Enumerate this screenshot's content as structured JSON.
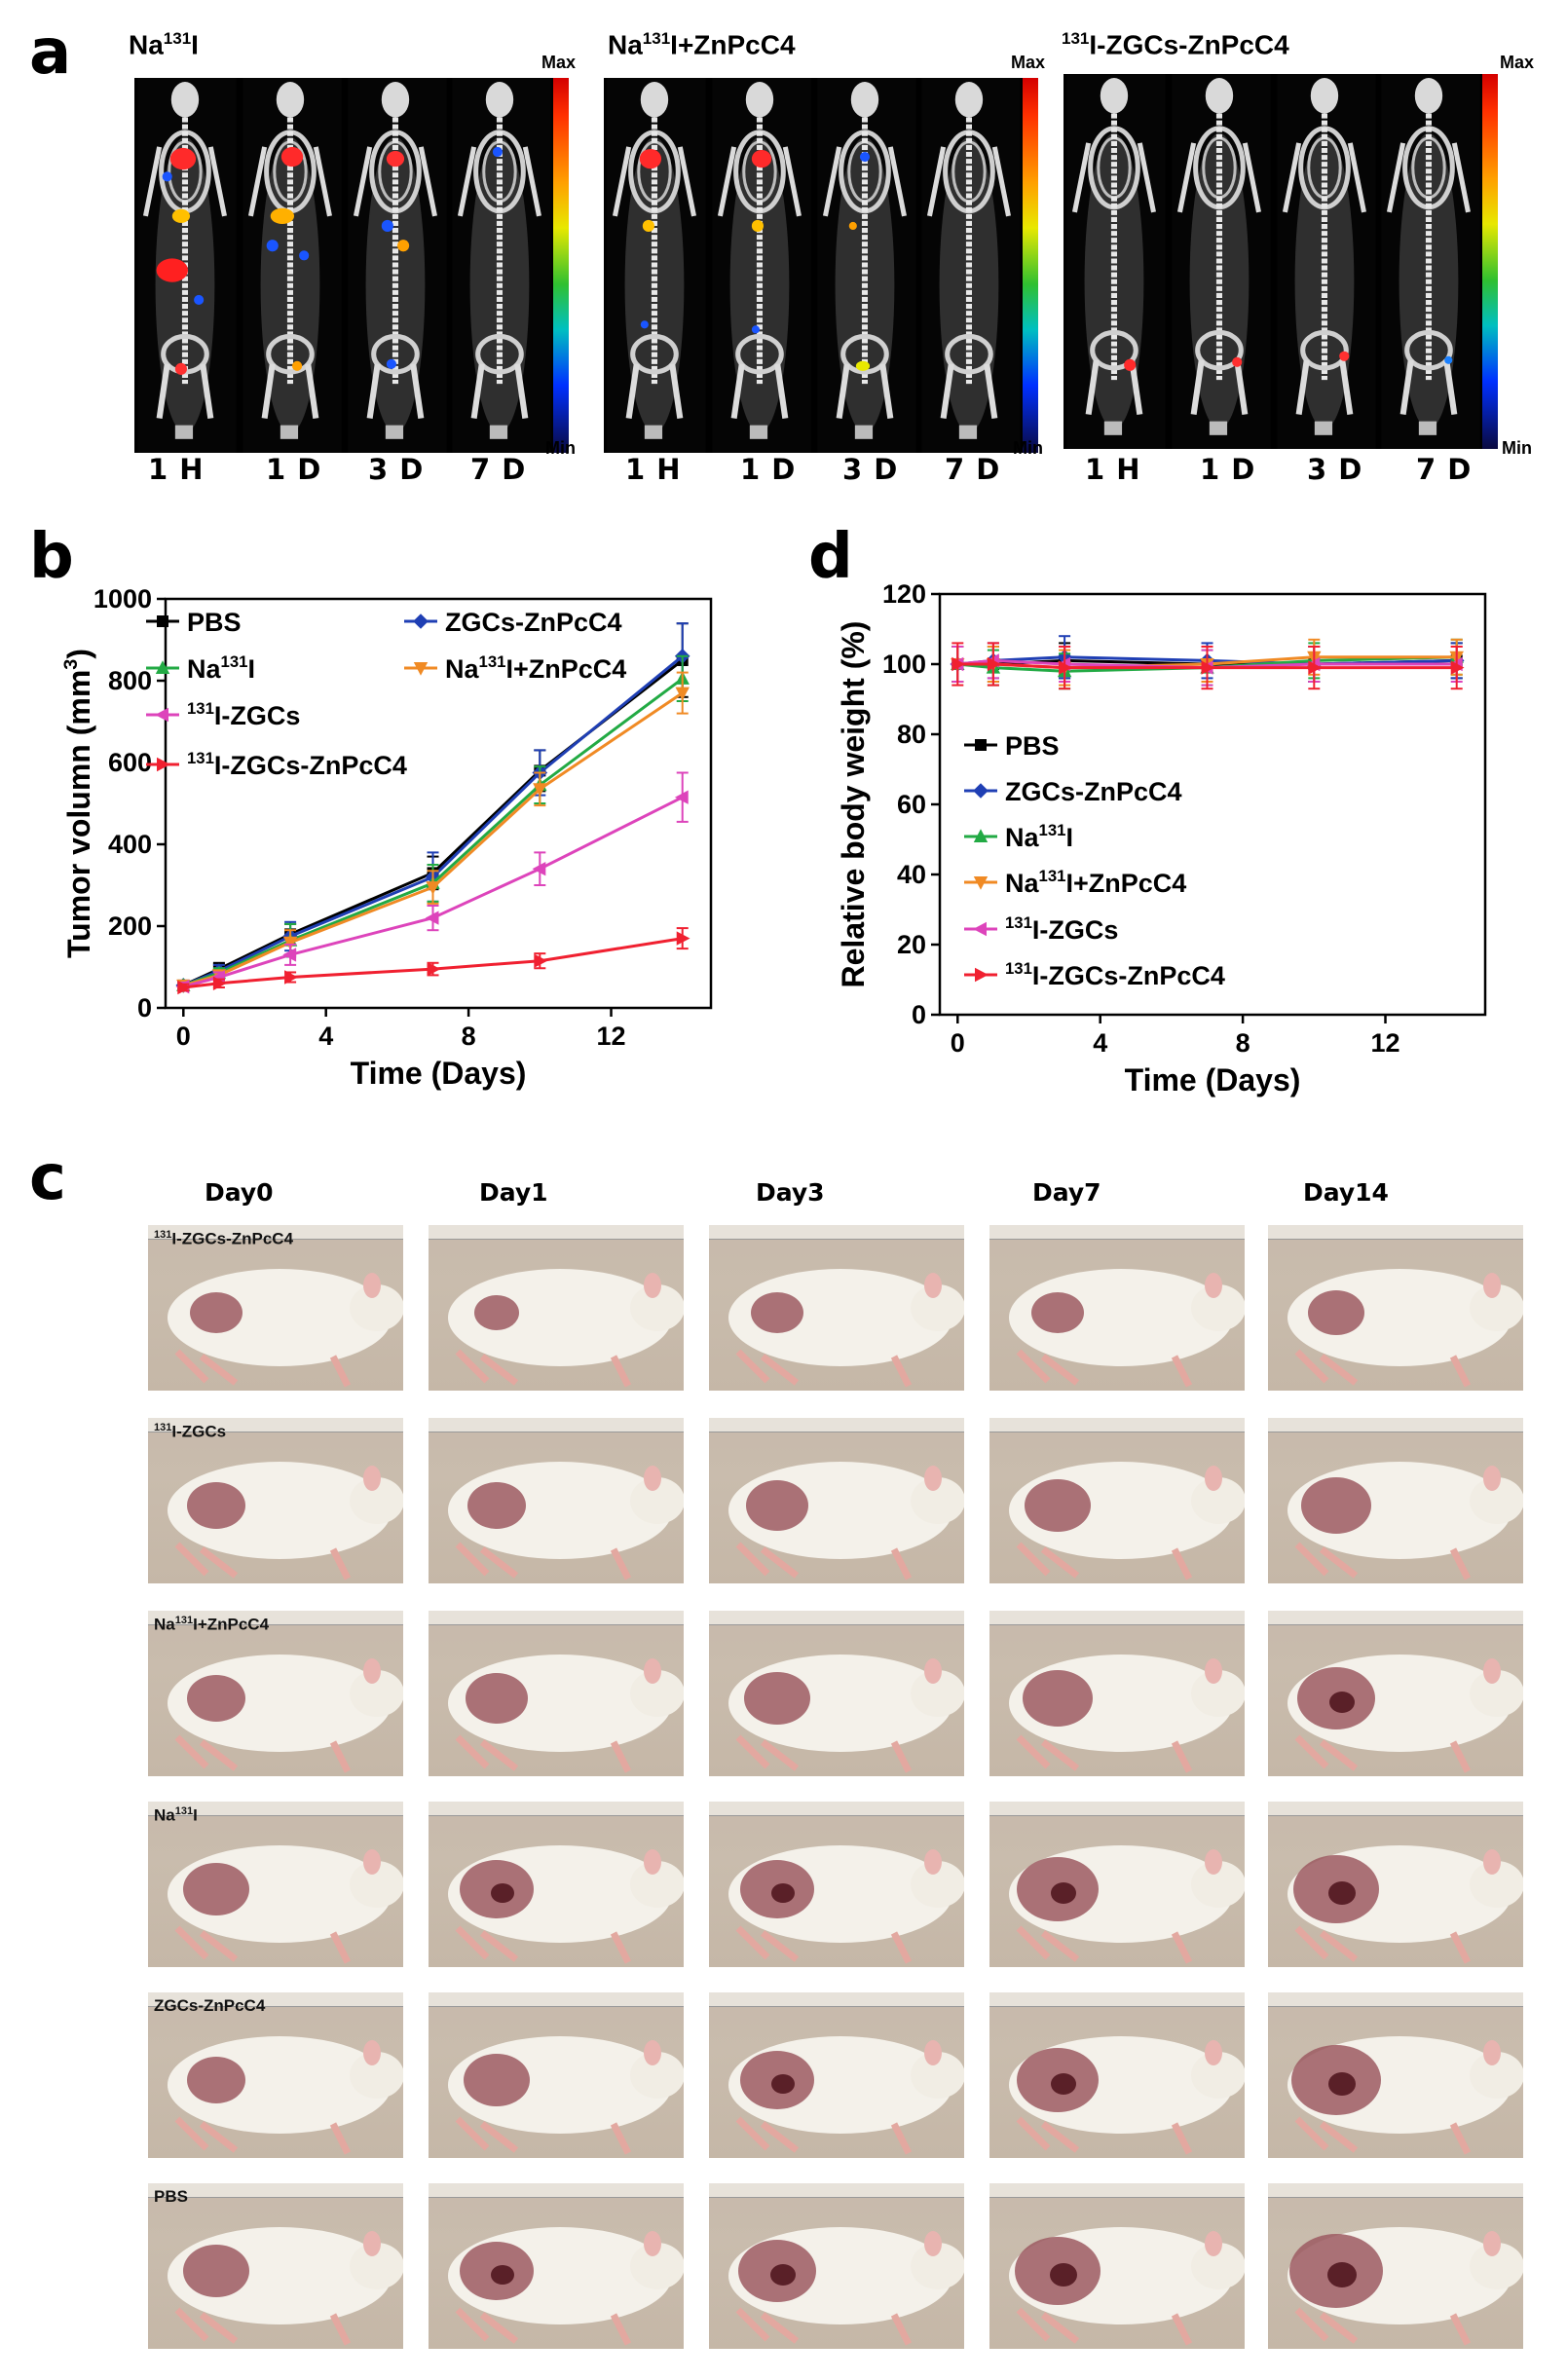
{
  "panel_a": {
    "label": "a",
    "groups": [
      {
        "title_pre": "Na",
        "title_sup": "131",
        "title_post": "I"
      },
      {
        "title_pre": "Na",
        "title_sup": "131",
        "title_post": "I+ZnPcC4"
      },
      {
        "title_pre": "",
        "title_sup": "131",
        "title_post": "I-ZGCs-ZnPcC4"
      }
    ],
    "timepoints": [
      "1 H",
      "1 D",
      "3 D",
      "7 D"
    ],
    "colorbar": {
      "max": "Max",
      "min": "Min"
    }
  },
  "panel_c": {
    "label": "c",
    "days": [
      "Day0",
      "Day1",
      "Day3",
      "Day7",
      "Day14"
    ],
    "groups": [
      {
        "pre": "",
        "sup": "131",
        "post": "I-ZGCs-ZnPcC4"
      },
      {
        "pre": "",
        "sup": "131",
        "post": "I-ZGCs"
      },
      {
        "pre": "Na",
        "sup": "131",
        "post": "I+ZnPcC4"
      },
      {
        "pre": "Na",
        "sup": "131",
        "post": "I"
      },
      {
        "pre": "ZGCs-ZnPcC4",
        "sup": "",
        "post": ""
      },
      {
        "pre": "PBS",
        "sup": "",
        "post": ""
      }
    ]
  },
  "chart_data": [
    {
      "panel": "b",
      "type": "line",
      "xlabel": "Time (Days)",
      "ylabel_pre": "Tumor volumn (mm",
      "ylabel_sup": "3",
      "ylabel_post": ")",
      "x": [
        0,
        1,
        3,
        7,
        10,
        14
      ],
      "xlim": [
        -0.5,
        14.8
      ],
      "ylim": [
        0,
        1000
      ],
      "xticks": [
        0,
        4,
        8,
        12
      ],
      "yticks": [
        0,
        200,
        400,
        600,
        800,
        1000
      ],
      "legend_placement": "top-left",
      "series": [
        {
          "pre": "PBS",
          "sup": "",
          "post": "",
          "color": "#000000",
          "marker": "square",
          "values": [
            55,
            95,
            180,
            330,
            580,
            850
          ],
          "err": [
            10,
            15,
            25,
            40,
            50,
            90
          ]
        },
        {
          "pre": "ZGCs-ZnPcC4",
          "sup": "",
          "post": "",
          "color": "#1f3fb4",
          "marker": "diamond",
          "values": [
            55,
            90,
            175,
            320,
            575,
            860
          ],
          "err": [
            10,
            15,
            35,
            60,
            55,
            80
          ]
        },
        {
          "pre": "Na",
          "sup": "131",
          "post": "I",
          "color": "#22aa44",
          "marker": "triangle-up",
          "values": [
            55,
            85,
            165,
            305,
            545,
            805
          ],
          "err": [
            10,
            12,
            40,
            45,
            45,
            55
          ]
        },
        {
          "pre": "Na",
          "sup": "131",
          "post": "I+ZnPcC4",
          "color": "#f08a24",
          "marker": "triangle-down",
          "values": [
            55,
            80,
            160,
            295,
            535,
            770
          ],
          "err": [
            10,
            12,
            30,
            40,
            40,
            50
          ]
        },
        {
          "pre": "",
          "sup": "131",
          "post": "I-ZGCs",
          "color": "#dd44bb",
          "marker": "triangle-left",
          "values": [
            52,
            75,
            130,
            220,
            340,
            515
          ],
          "err": [
            10,
            12,
            25,
            30,
            40,
            60
          ]
        },
        {
          "pre": "",
          "sup": "131",
          "post": "I-ZGCs-ZnPcC4",
          "color": "#f02030",
          "marker": "triangle-right",
          "values": [
            50,
            60,
            75,
            95,
            115,
            170
          ],
          "err": [
            8,
            10,
            12,
            15,
            18,
            25
          ]
        }
      ]
    },
    {
      "panel": "d",
      "type": "line",
      "xlabel": "Time (Days)",
      "ylabel": "Relative body weight (%)",
      "x": [
        0,
        1,
        3,
        7,
        10,
        14
      ],
      "xlim": [
        -0.5,
        14.8
      ],
      "ylim": [
        0,
        120
      ],
      "xticks": [
        0,
        4,
        8,
        12
      ],
      "yticks": [
        0,
        20,
        40,
        60,
        80,
        100,
        120
      ],
      "legend_placement": "center-left",
      "series": [
        {
          "pre": "PBS",
          "sup": "",
          "post": "",
          "color": "#000000",
          "marker": "square",
          "values": [
            100,
            100,
            101,
            100,
            100,
            101
          ],
          "err": [
            5,
            5,
            5,
            5,
            5,
            5
          ]
        },
        {
          "pre": "ZGCs-ZnPcC4",
          "sup": "",
          "post": "",
          "color": "#1f3fb4",
          "marker": "diamond",
          "values": [
            100,
            101,
            102,
            101,
            100,
            101
          ],
          "err": [
            5,
            5,
            6,
            5,
            5,
            5
          ]
        },
        {
          "pre": "Na",
          "sup": "131",
          "post": "I",
          "color": "#22aa44",
          "marker": "triangle-up",
          "values": [
            100,
            99,
            98,
            99,
            101,
            102
          ],
          "err": [
            5,
            5,
            5,
            5,
            5,
            5
          ]
        },
        {
          "pre": "Na",
          "sup": "131",
          "post": "I+ZnPcC4",
          "color": "#f08a24",
          "marker": "triangle-down",
          "values": [
            100,
            100,
            99,
            100,
            102,
            102
          ],
          "err": [
            5,
            5,
            5,
            5,
            5,
            5
          ]
        },
        {
          "pre": "",
          "sup": "131",
          "post": "I-ZGCs",
          "color": "#dd44bb",
          "marker": "triangle-left",
          "values": [
            100,
            101,
            100,
            99,
            100,
            100
          ],
          "err": [
            5,
            5,
            5,
            5,
            5,
            5
          ]
        },
        {
          "pre": "",
          "sup": "131",
          "post": "I-ZGCs-ZnPcC4",
          "color": "#f02030",
          "marker": "triangle-right",
          "values": [
            100,
            100,
            99,
            99,
            99,
            99
          ],
          "err": [
            6,
            6,
            6,
            6,
            6,
            6
          ]
        }
      ]
    }
  ]
}
